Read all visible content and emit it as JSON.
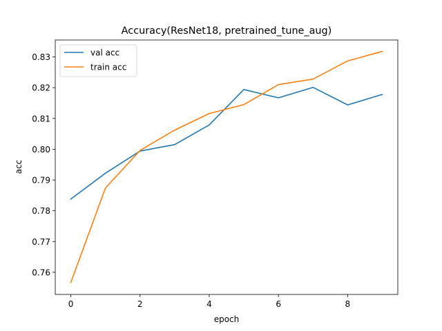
{
  "chart_data": {
    "type": "line",
    "title": "Accuracy(ResNet18, pretrained_tune_aug)",
    "xlabel": "epoch",
    "ylabel": "acc",
    "x": [
      0,
      1,
      2,
      3,
      4,
      5,
      6,
      7,
      8,
      9
    ],
    "xlim": [
      -0.45,
      9.45
    ],
    "ylim": [
      0.7528,
      0.8355
    ],
    "xticks": [
      0,
      2,
      4,
      6,
      8
    ],
    "yticks": [
      0.76,
      0.77,
      0.78,
      0.79,
      0.8,
      0.81,
      0.82,
      0.83
    ],
    "ytick_labels": [
      "0.76",
      "0.77",
      "0.78",
      "0.79",
      "0.80",
      "0.81",
      "0.82",
      "0.83"
    ],
    "grid": false,
    "legend_position": "top-left",
    "series": [
      {
        "name": "val acc",
        "color": "#1f77b4",
        "values": [
          0.7838,
          0.7922,
          0.7994,
          0.8015,
          0.8079,
          0.8194,
          0.8167,
          0.8201,
          0.8144,
          0.8178
        ]
      },
      {
        "name": "train acc",
        "color": "#ff7f0e",
        "values": [
          0.7567,
          0.7874,
          0.7996,
          0.8062,
          0.8116,
          0.8145,
          0.821,
          0.8228,
          0.8287,
          0.8318
        ]
      }
    ]
  }
}
